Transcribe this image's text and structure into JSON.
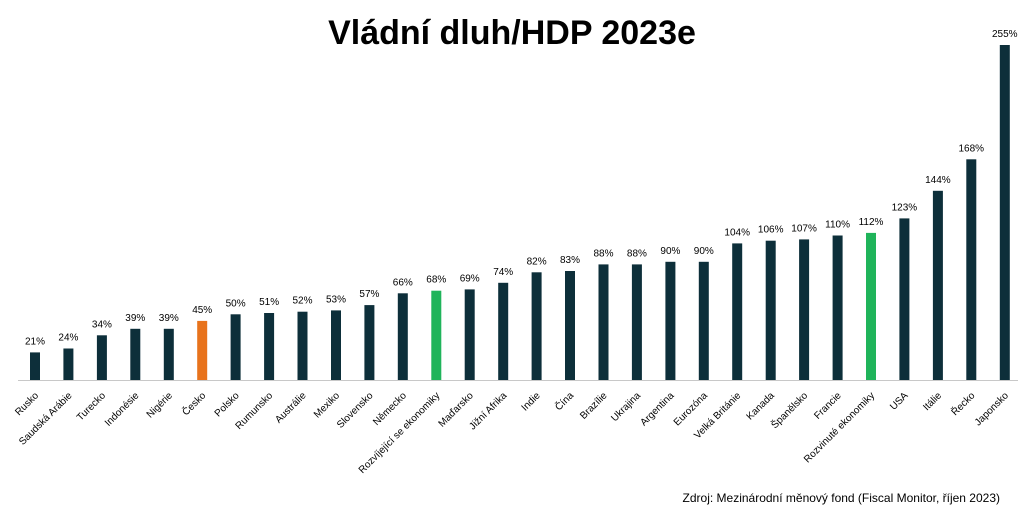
{
  "chart_data": {
    "type": "bar",
    "title": "Vládní dluh/HDP 2023e",
    "source": "Zdroj: Mezinárodní měnový fond (Fiscal Monitor, říjen 2023)",
    "categories": [
      "Rusko",
      "Saudská Arábie",
      "Turecko",
      "Indonésie",
      "Nigérie",
      "Česko",
      "Polsko",
      "Rumunsko",
      "Austrálie",
      "Mexiko",
      "Slovensko",
      "Německo",
      "Rozvíjející se ekonomiky",
      "Maďarsko",
      "Jižní Afrika",
      "Indie",
      "Čína",
      "Brazílie",
      "Ukrajina",
      "Argentina",
      "Eurozóna",
      "Velká Británie",
      "Kanada",
      "Španělsko",
      "Francie",
      "Rozvinuté ekonomiky",
      "USA",
      "Itálie",
      "Řecko",
      "Japonsko"
    ],
    "values": [
      21,
      24,
      34,
      39,
      39,
      45,
      50,
      51,
      52,
      53,
      57,
      66,
      68,
      69,
      74,
      82,
      83,
      88,
      88,
      90,
      90,
      104,
      106,
      107,
      110,
      112,
      123,
      144,
      168,
      255
    ],
    "value_labels": [
      "21%",
      "24%",
      "34%",
      "39%",
      "39%",
      "45%",
      "50%",
      "51%",
      "52%",
      "53%",
      "57%",
      "66%",
      "68%",
      "69%",
      "74%",
      "82%",
      "83%",
      "88%",
      "88%",
      "90%",
      "90%",
      "104%",
      "106%",
      "107%",
      "110%",
      "112%",
      "123%",
      "144%",
      "168%",
      "255%"
    ],
    "highlight": {
      "Česko": "#e8731c",
      "Rozvíjející se ekonomiky": "#1fb45a",
      "Rozvinuté ekonomiky": "#1fb45a"
    },
    "bar_color": "#0d2f3a",
    "ylim": [
      0,
      255
    ],
    "grid": false,
    "legend": "none"
  }
}
